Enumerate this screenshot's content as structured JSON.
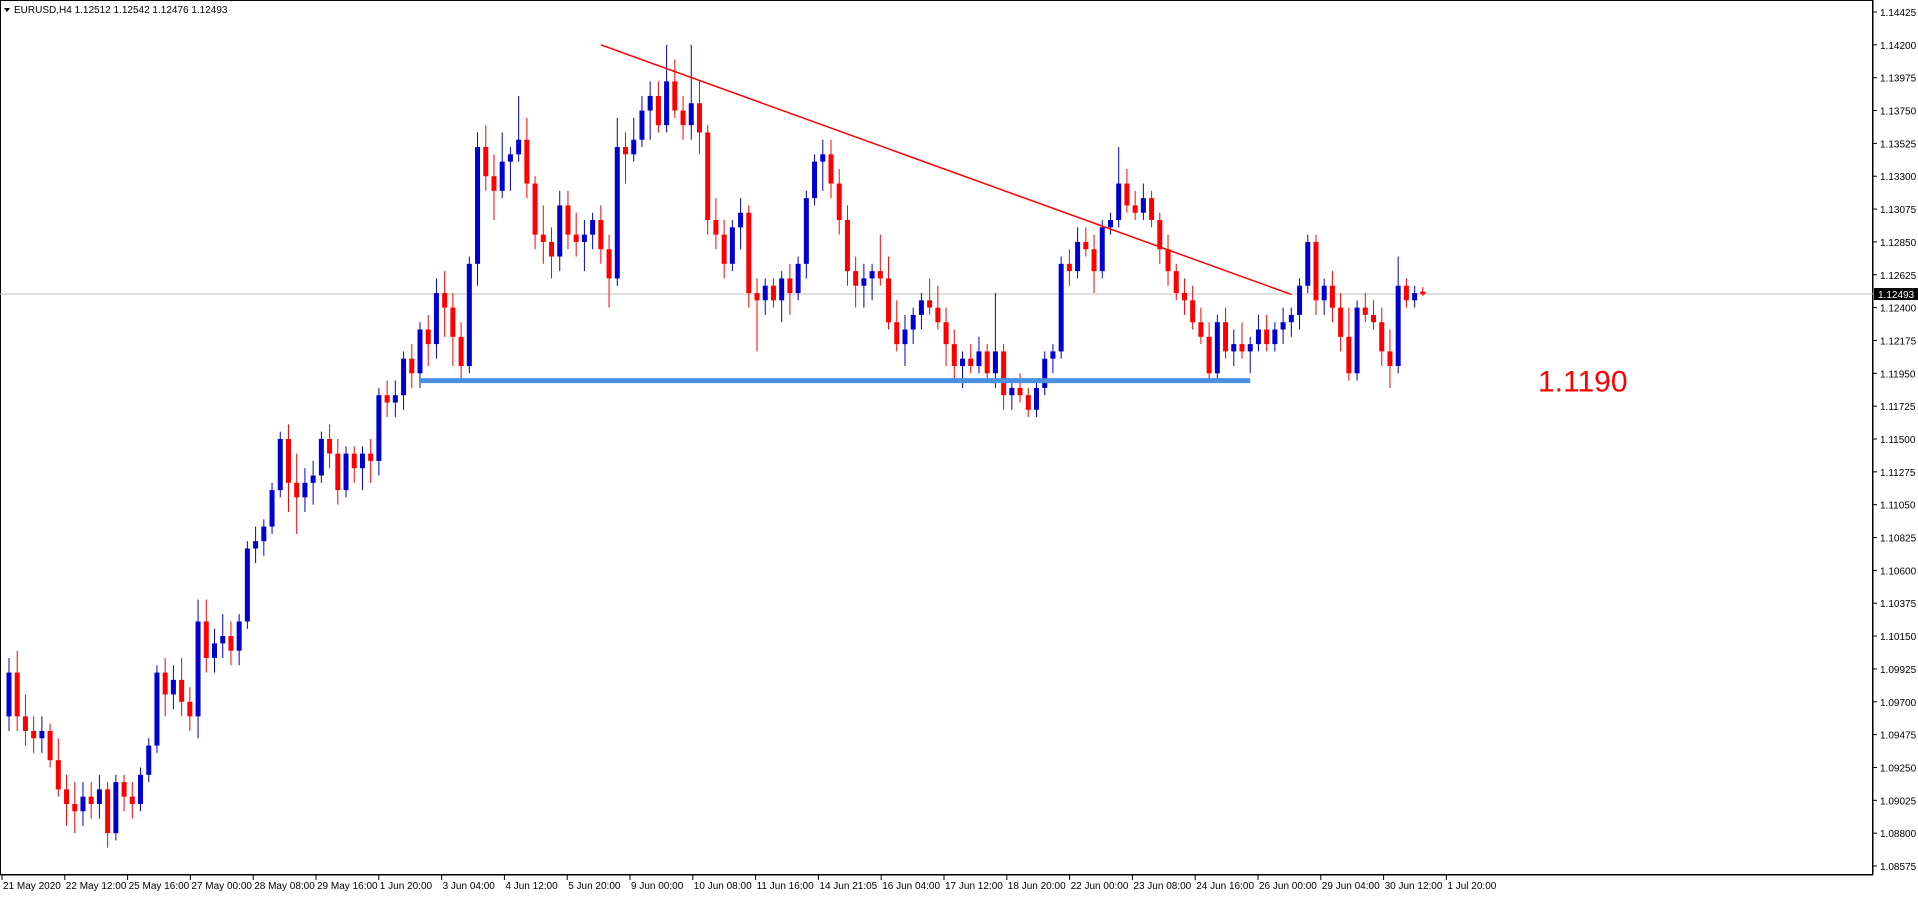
{
  "window": {
    "title": "EURUSD,H4  1.12512 1.12542 1.12476 1.12493",
    "menu_arrow": "triangle-down-icon"
  },
  "colors": {
    "background": "#ffffff",
    "bull_candle": "#0000d0",
    "bear_candle": "#ff0000",
    "trendline": "#ff0000",
    "support_line": "#4a90e2",
    "current_price_line": "#c0c0c0",
    "price_tag_bg": "#000000",
    "axis": "#000000"
  },
  "chart_data": {
    "type": "candlestick",
    "symbol": "EURUSD",
    "timeframe": "H4",
    "header": {
      "open": 1.12512,
      "high": 1.12542,
      "low": 1.12476,
      "close": 1.12493
    },
    "current_price": 1.12493,
    "current_price_label": "1.12493",
    "ylim": [
      1.08575,
      1.14425
    ],
    "y_ticks": [
      "1.14425",
      "1.14200",
      "1.13975",
      "1.13750",
      "1.13525",
      "1.13300",
      "1.13075",
      "1.12850",
      "1.12625",
      "1.12400",
      "1.12175",
      "1.11950",
      "1.11725",
      "1.11500",
      "1.11275",
      "1.11050",
      "1.10825",
      "1.10600",
      "1.10375",
      "1.10150",
      "1.09925",
      "1.09700",
      "1.09475",
      "1.09250",
      "1.09025",
      "1.08800",
      "1.08575"
    ],
    "x_tick_labels": [
      "21 May 2020",
      "22 May 12:00",
      "25 May 16:00",
      "27 May 00:00",
      "28 May 08:00",
      "29 May 16:00",
      "1 Jun 20:00",
      "3 Jun 04:00",
      "4 Jun 12:00",
      "5 Jun 20:00",
      "9 Jun 00:00",
      "10 Jun 08:00",
      "11 Jun 16:00",
      "14 Jun 21:05",
      "16 Jun 04:00",
      "17 Jun 12:00",
      "18 Jun 20:00",
      "22 Jun 00:00",
      "23 Jun 08:00",
      "24 Jun 16:00",
      "26 Jun 00:00",
      "29 Jun 04:00",
      "30 Jun 12:00",
      "1 Jul 20:00"
    ],
    "support": {
      "price": 1.119,
      "label": "1.1190",
      "from_bar": 50,
      "to_bar": 151
    },
    "trendline": {
      "from_bar": 72,
      "from_price": 1.142,
      "to_bar": 156,
      "to_price": 1.1249
    },
    "candles": [
      [
        1.096,
        1.1,
        1.095,
        1.099
      ],
      [
        1.099,
        1.1005,
        1.095,
        1.096
      ],
      [
        1.096,
        1.0975,
        1.094,
        1.095
      ],
      [
        1.095,
        1.096,
        1.0935,
        1.0945
      ],
      [
        1.0945,
        1.096,
        1.0935,
        1.095
      ],
      [
        1.095,
        1.0955,
        1.0925,
        1.093
      ],
      [
        1.093,
        1.0945,
        1.0905,
        1.091
      ],
      [
        1.091,
        1.092,
        1.0885,
        1.09
      ],
      [
        1.09,
        1.0915,
        1.088,
        1.0895
      ],
      [
        1.0895,
        1.0915,
        1.0885,
        1.0905
      ],
      [
        1.0905,
        1.0915,
        1.089,
        1.09
      ],
      [
        1.09,
        1.092,
        1.089,
        1.091
      ],
      [
        1.091,
        1.0915,
        1.087,
        1.088
      ],
      [
        1.088,
        1.092,
        1.0875,
        1.0915
      ],
      [
        1.0915,
        1.092,
        1.0895,
        1.0905
      ],
      [
        1.0905,
        1.0915,
        1.089,
        1.09
      ],
      [
        1.09,
        1.0925,
        1.0895,
        1.092
      ],
      [
        1.092,
        1.0945,
        1.0915,
        1.094
      ],
      [
        1.094,
        1.0995,
        1.0935,
        1.099
      ],
      [
        1.099,
        1.1,
        1.096,
        1.0975
      ],
      [
        1.0975,
        1.0995,
        1.0965,
        1.0985
      ],
      [
        1.0985,
        1.1,
        1.096,
        1.097
      ],
      [
        1.097,
        1.098,
        1.095,
        1.096
      ],
      [
        1.096,
        1.104,
        1.0945,
        1.1025
      ],
      [
        1.1025,
        1.104,
        1.099,
        1.1
      ],
      [
        1.1,
        1.102,
        1.099,
        1.101
      ],
      [
        1.101,
        1.103,
        1.1,
        1.1015
      ],
      [
        1.1015,
        1.1025,
        1.0995,
        1.1005
      ],
      [
        1.1005,
        1.103,
        1.0995,
        1.1025
      ],
      [
        1.1025,
        1.108,
        1.102,
        1.1075
      ],
      [
        1.1075,
        1.109,
        1.1065,
        1.108
      ],
      [
        1.108,
        1.1095,
        1.107,
        1.109
      ],
      [
        1.109,
        1.112,
        1.1085,
        1.1115
      ],
      [
        1.1115,
        1.1155,
        1.111,
        1.115
      ],
      [
        1.115,
        1.116,
        1.11,
        1.112
      ],
      [
        1.112,
        1.114,
        1.1085,
        1.111
      ],
      [
        1.111,
        1.113,
        1.11,
        1.112
      ],
      [
        1.112,
        1.1135,
        1.1105,
        1.1125
      ],
      [
        1.1125,
        1.1155,
        1.112,
        1.115
      ],
      [
        1.115,
        1.116,
        1.113,
        1.114
      ],
      [
        1.114,
        1.115,
        1.1105,
        1.1115
      ],
      [
        1.1115,
        1.1145,
        1.111,
        1.114
      ],
      [
        1.114,
        1.1145,
        1.112,
        1.113
      ],
      [
        1.113,
        1.1145,
        1.1115,
        1.114
      ],
      [
        1.114,
        1.115,
        1.112,
        1.1135
      ],
      [
        1.1135,
        1.1185,
        1.1125,
        1.118
      ],
      [
        1.118,
        1.119,
        1.1165,
        1.1175
      ],
      [
        1.1175,
        1.119,
        1.1165,
        1.118
      ],
      [
        1.118,
        1.121,
        1.117,
        1.1205
      ],
      [
        1.1205,
        1.1215,
        1.1185,
        1.1195
      ],
      [
        1.1195,
        1.123,
        1.1185,
        1.1225
      ],
      [
        1.1225,
        1.1235,
        1.12,
        1.1215
      ],
      [
        1.1215,
        1.126,
        1.1205,
        1.125
      ],
      [
        1.125,
        1.1265,
        1.122,
        1.124
      ],
      [
        1.124,
        1.125,
        1.12,
        1.122
      ],
      [
        1.122,
        1.123,
        1.119,
        1.12
      ],
      [
        1.12,
        1.1275,
        1.1195,
        1.127
      ],
      [
        1.127,
        1.136,
        1.1255,
        1.135
      ],
      [
        1.135,
        1.1365,
        1.132,
        1.133
      ],
      [
        1.133,
        1.1345,
        1.13,
        1.132
      ],
      [
        1.132,
        1.136,
        1.1315,
        1.134
      ],
      [
        1.134,
        1.135,
        1.132,
        1.1345
      ],
      [
        1.1345,
        1.1385,
        1.134,
        1.1355
      ],
      [
        1.1355,
        1.137,
        1.1315,
        1.1325
      ],
      [
        1.1325,
        1.133,
        1.128,
        1.129
      ],
      [
        1.129,
        1.131,
        1.127,
        1.1285
      ],
      [
        1.1285,
        1.1295,
        1.126,
        1.1275
      ],
      [
        1.1275,
        1.132,
        1.1265,
        1.131
      ],
      [
        1.131,
        1.132,
        1.128,
        1.129
      ],
      [
        1.129,
        1.1305,
        1.1275,
        1.1285
      ],
      [
        1.1285,
        1.13,
        1.1265,
        1.129
      ],
      [
        1.129,
        1.1305,
        1.128,
        1.13
      ],
      [
        1.13,
        1.131,
        1.127,
        1.128
      ],
      [
        1.128,
        1.129,
        1.124,
        1.126
      ],
      [
        1.126,
        1.137,
        1.1255,
        1.135
      ],
      [
        1.135,
        1.136,
        1.1325,
        1.1345
      ],
      [
        1.1345,
        1.137,
        1.134,
        1.1355
      ],
      [
        1.1355,
        1.1385,
        1.135,
        1.1375
      ],
      [
        1.1375,
        1.1395,
        1.1355,
        1.1385
      ],
      [
        1.1385,
        1.1395,
        1.136,
        1.1365
      ],
      [
        1.1365,
        1.142,
        1.136,
        1.1395
      ],
      [
        1.1395,
        1.141,
        1.137,
        1.1375
      ],
      [
        1.1375,
        1.1385,
        1.1355,
        1.1365
      ],
      [
        1.1365,
        1.142,
        1.1355,
        1.138
      ],
      [
        1.138,
        1.1395,
        1.1345,
        1.136
      ],
      [
        1.136,
        1.1365,
        1.129,
        1.13
      ],
      [
        1.13,
        1.1315,
        1.128,
        1.129
      ],
      [
        1.129,
        1.13,
        1.126,
        1.127
      ],
      [
        1.127,
        1.13,
        1.1265,
        1.1295
      ],
      [
        1.1295,
        1.1315,
        1.128,
        1.1305
      ],
      [
        1.1305,
        1.131,
        1.124,
        1.125
      ],
      [
        1.125,
        1.126,
        1.121,
        1.1245
      ],
      [
        1.1245,
        1.126,
        1.1235,
        1.1255
      ],
      [
        1.1255,
        1.126,
        1.124,
        1.1245
      ],
      [
        1.1245,
        1.1265,
        1.123,
        1.126
      ],
      [
        1.126,
        1.127,
        1.1235,
        1.125
      ],
      [
        1.125,
        1.1275,
        1.1245,
        1.127
      ],
      [
        1.127,
        1.132,
        1.126,
        1.1315
      ],
      [
        1.1315,
        1.1345,
        1.131,
        1.134
      ],
      [
        1.134,
        1.1355,
        1.132,
        1.1345
      ],
      [
        1.1345,
        1.1355,
        1.1315,
        1.1325
      ],
      [
        1.1325,
        1.1335,
        1.129,
        1.13
      ],
      [
        1.13,
        1.131,
        1.1255,
        1.1265
      ],
      [
        1.1265,
        1.1275,
        1.124,
        1.1255
      ],
      [
        1.1255,
        1.127,
        1.124,
        1.126
      ],
      [
        1.126,
        1.127,
        1.1245,
        1.1265
      ],
      [
        1.1265,
        1.129,
        1.1255,
        1.126
      ],
      [
        1.126,
        1.1275,
        1.1225,
        1.123
      ],
      [
        1.123,
        1.1245,
        1.121,
        1.1215
      ],
      [
        1.1215,
        1.1235,
        1.12,
        1.1225
      ],
      [
        1.1225,
        1.124,
        1.1215,
        1.1235
      ],
      [
        1.1235,
        1.125,
        1.1225,
        1.1245
      ],
      [
        1.1245,
        1.126,
        1.1235,
        1.124
      ],
      [
        1.124,
        1.1255,
        1.1225,
        1.123
      ],
      [
        1.123,
        1.124,
        1.12,
        1.1215
      ],
      [
        1.1215,
        1.1225,
        1.119,
        1.12
      ],
      [
        1.12,
        1.121,
        1.1185,
        1.1205
      ],
      [
        1.1205,
        1.1215,
        1.1195,
        1.12
      ],
      [
        1.12,
        1.122,
        1.1195,
        1.121
      ],
      [
        1.121,
        1.1215,
        1.119,
        1.1195
      ],
      [
        1.1195,
        1.125,
        1.1185,
        1.121
      ],
      [
        1.121,
        1.1215,
        1.117,
        1.118
      ],
      [
        1.118,
        1.119,
        1.117,
        1.1185
      ],
      [
        1.1185,
        1.1195,
        1.1175,
        1.118
      ],
      [
        1.118,
        1.1185,
        1.1165,
        1.117
      ],
      [
        1.117,
        1.119,
        1.1165,
        1.1185
      ],
      [
        1.1185,
        1.121,
        1.118,
        1.1205
      ],
      [
        1.1205,
        1.1215,
        1.1195,
        1.121
      ],
      [
        1.121,
        1.1275,
        1.1205,
        1.127
      ],
      [
        1.127,
        1.128,
        1.1255,
        1.1265
      ],
      [
        1.1265,
        1.1295,
        1.126,
        1.1285
      ],
      [
        1.1285,
        1.1295,
        1.1275,
        1.128
      ],
      [
        1.128,
        1.129,
        1.125,
        1.1265
      ],
      [
        1.1265,
        1.13,
        1.126,
        1.1295
      ],
      [
        1.1295,
        1.1305,
        1.129,
        1.13
      ],
      [
        1.13,
        1.135,
        1.1295,
        1.1325
      ],
      [
        1.1325,
        1.1335,
        1.1305,
        1.131
      ],
      [
        1.131,
        1.132,
        1.13,
        1.1305
      ],
      [
        1.1305,
        1.1325,
        1.13,
        1.1315
      ],
      [
        1.1315,
        1.132,
        1.1295,
        1.13
      ],
      [
        1.13,
        1.1305,
        1.127,
        1.128
      ],
      [
        1.128,
        1.129,
        1.1255,
        1.1265
      ],
      [
        1.1265,
        1.127,
        1.1245,
        1.125
      ],
      [
        1.125,
        1.126,
        1.1235,
        1.1245
      ],
      [
        1.1245,
        1.1255,
        1.1225,
        1.123
      ],
      [
        1.123,
        1.124,
        1.1215,
        1.122
      ],
      [
        1.122,
        1.123,
        1.119,
        1.1195
      ],
      [
        1.1195,
        1.1235,
        1.119,
        1.123
      ],
      [
        1.123,
        1.124,
        1.1205,
        1.121
      ],
      [
        1.121,
        1.1225,
        1.12,
        1.1215
      ],
      [
        1.1215,
        1.123,
        1.1205,
        1.121
      ],
      [
        1.121,
        1.122,
        1.1195,
        1.1215
      ],
      [
        1.1215,
        1.1235,
        1.121,
        1.1225
      ],
      [
        1.1225,
        1.1235,
        1.121,
        1.1215
      ],
      [
        1.1215,
        1.123,
        1.121,
        1.1225
      ],
      [
        1.1225,
        1.124,
        1.1215,
        1.123
      ],
      [
        1.123,
        1.124,
        1.122,
        1.1235
      ],
      [
        1.1235,
        1.126,
        1.1225,
        1.1255
      ],
      [
        1.1255,
        1.129,
        1.125,
        1.1285
      ],
      [
        1.1285,
        1.129,
        1.1235,
        1.1245
      ],
      [
        1.1245,
        1.126,
        1.1235,
        1.1255
      ],
      [
        1.1255,
        1.1265,
        1.123,
        1.124
      ],
      [
        1.124,
        1.125,
        1.121,
        1.122
      ],
      [
        1.122,
        1.124,
        1.119,
        1.1195
      ],
      [
        1.1195,
        1.1245,
        1.119,
        1.124
      ],
      [
        1.124,
        1.125,
        1.123,
        1.1235
      ],
      [
        1.1235,
        1.1245,
        1.1225,
        1.123
      ],
      [
        1.123,
        1.124,
        1.12,
        1.121
      ],
      [
        1.121,
        1.1225,
        1.1185,
        1.12
      ],
      [
        1.12,
        1.1275,
        1.1195,
        1.1255
      ],
      [
        1.1255,
        1.126,
        1.124,
        1.1245
      ],
      [
        1.1245,
        1.1255,
        1.124,
        1.125
      ],
      [
        1.1251,
        1.1254,
        1.1248,
        1.1249
      ]
    ]
  }
}
